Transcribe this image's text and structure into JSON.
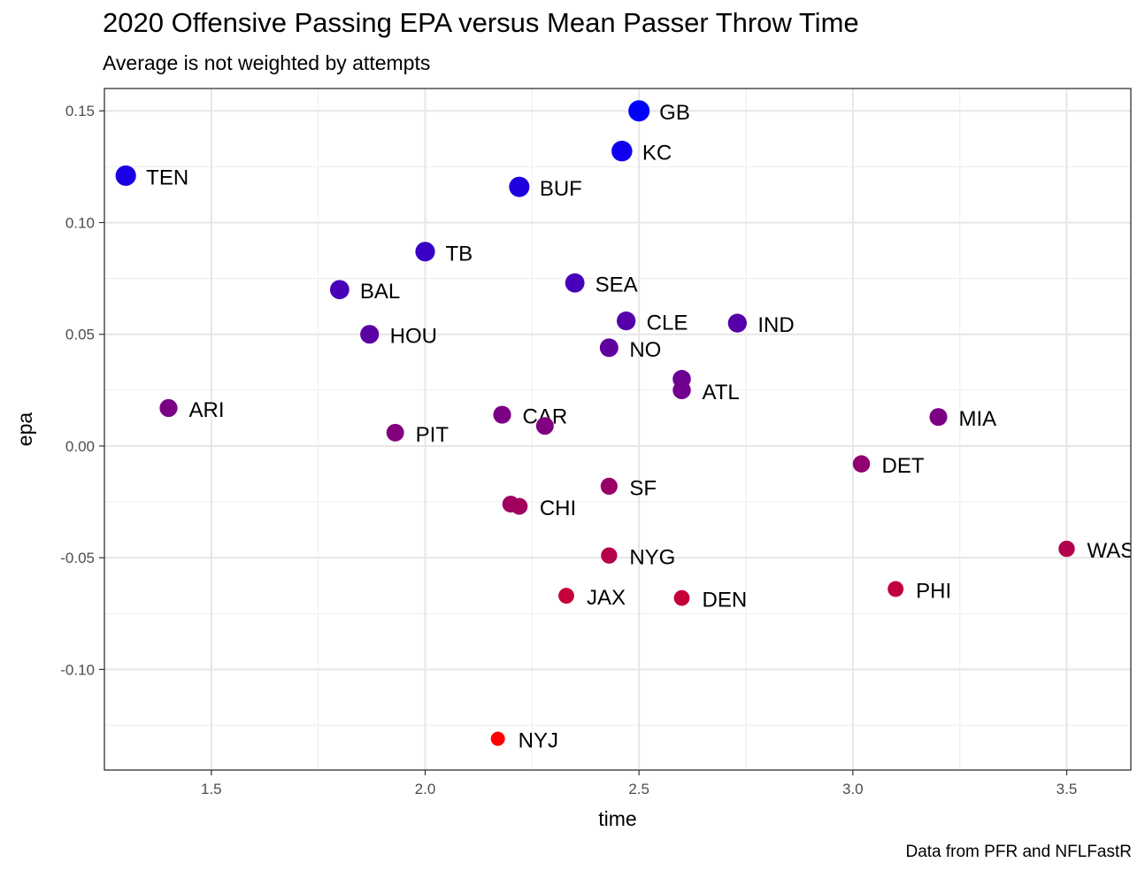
{
  "chart_data": {
    "type": "scatter",
    "title": "2020 Offensive Passing EPA versus Mean Passer Throw Time",
    "subtitle": "Average is not weighted by attempts",
    "caption": "Data from PFR and NFLFastR",
    "xlabel": "time",
    "ylabel": "epa",
    "xlim": [
      1.25,
      3.65
    ],
    "ylim": [
      -0.145,
      0.16
    ],
    "x_ticks": [
      1.5,
      2.0,
      2.5,
      3.0,
      3.5
    ],
    "x_tick_labels": [
      "1.5",
      "2.0",
      "2.5",
      "3.0",
      "3.5"
    ],
    "y_ticks": [
      -0.1,
      -0.05,
      0.0,
      0.05,
      0.1,
      0.15
    ],
    "y_tick_labels": [
      "-0.10",
      "-0.05",
      "0.00",
      "0.05",
      "0.10",
      "0.15"
    ],
    "grid": true,
    "color_low": "#ff0000",
    "color_high": "#0000ff",
    "points": [
      {
        "team": "GB",
        "time": 2.5,
        "epa": 0.15
      },
      {
        "team": "KC",
        "time": 2.46,
        "epa": 0.132
      },
      {
        "team": "TEN",
        "time": 1.3,
        "epa": 0.121
      },
      {
        "team": "BUF",
        "time": 2.22,
        "epa": 0.116
      },
      {
        "team": "TB",
        "time": 2.0,
        "epa": 0.087
      },
      {
        "team": "SEA",
        "time": 2.35,
        "epa": 0.073
      },
      {
        "team": "BAL",
        "time": 1.8,
        "epa": 0.07
      },
      {
        "team": "CLE",
        "time": 2.47,
        "epa": 0.056
      },
      {
        "team": "IND",
        "time": 2.73,
        "epa": 0.055
      },
      {
        "team": "HOU",
        "time": 1.87,
        "epa": 0.05
      },
      {
        "team": "NO",
        "time": 2.43,
        "epa": 0.044
      },
      {
        "team": "",
        "time": 2.6,
        "epa": 0.03
      },
      {
        "team": "ATL",
        "time": 2.6,
        "epa": 0.025
      },
      {
        "team": "ARI",
        "time": 1.4,
        "epa": 0.017
      },
      {
        "team": "CAR",
        "time": 2.18,
        "epa": 0.014
      },
      {
        "team": "MIA",
        "time": 3.2,
        "epa": 0.013
      },
      {
        "team": "",
        "time": 2.28,
        "epa": 0.009
      },
      {
        "team": "PIT",
        "time": 1.93,
        "epa": 0.006
      },
      {
        "team": "DET",
        "time": 3.02,
        "epa": -0.008
      },
      {
        "team": "SF",
        "time": 2.43,
        "epa": -0.018
      },
      {
        "team": "",
        "time": 2.2,
        "epa": -0.026
      },
      {
        "team": "CHI",
        "time": 2.22,
        "epa": -0.027
      },
      {
        "team": "WAS",
        "time": 3.5,
        "epa": -0.046
      },
      {
        "team": "NYG",
        "time": 2.43,
        "epa": -0.049
      },
      {
        "team": "PHI",
        "time": 3.1,
        "epa": -0.064
      },
      {
        "team": "JAX",
        "time": 2.33,
        "epa": -0.067
      },
      {
        "team": "DEN",
        "time": 2.6,
        "epa": -0.068
      },
      {
        "team": "NYJ",
        "time": 2.17,
        "epa": -0.131
      }
    ]
  }
}
